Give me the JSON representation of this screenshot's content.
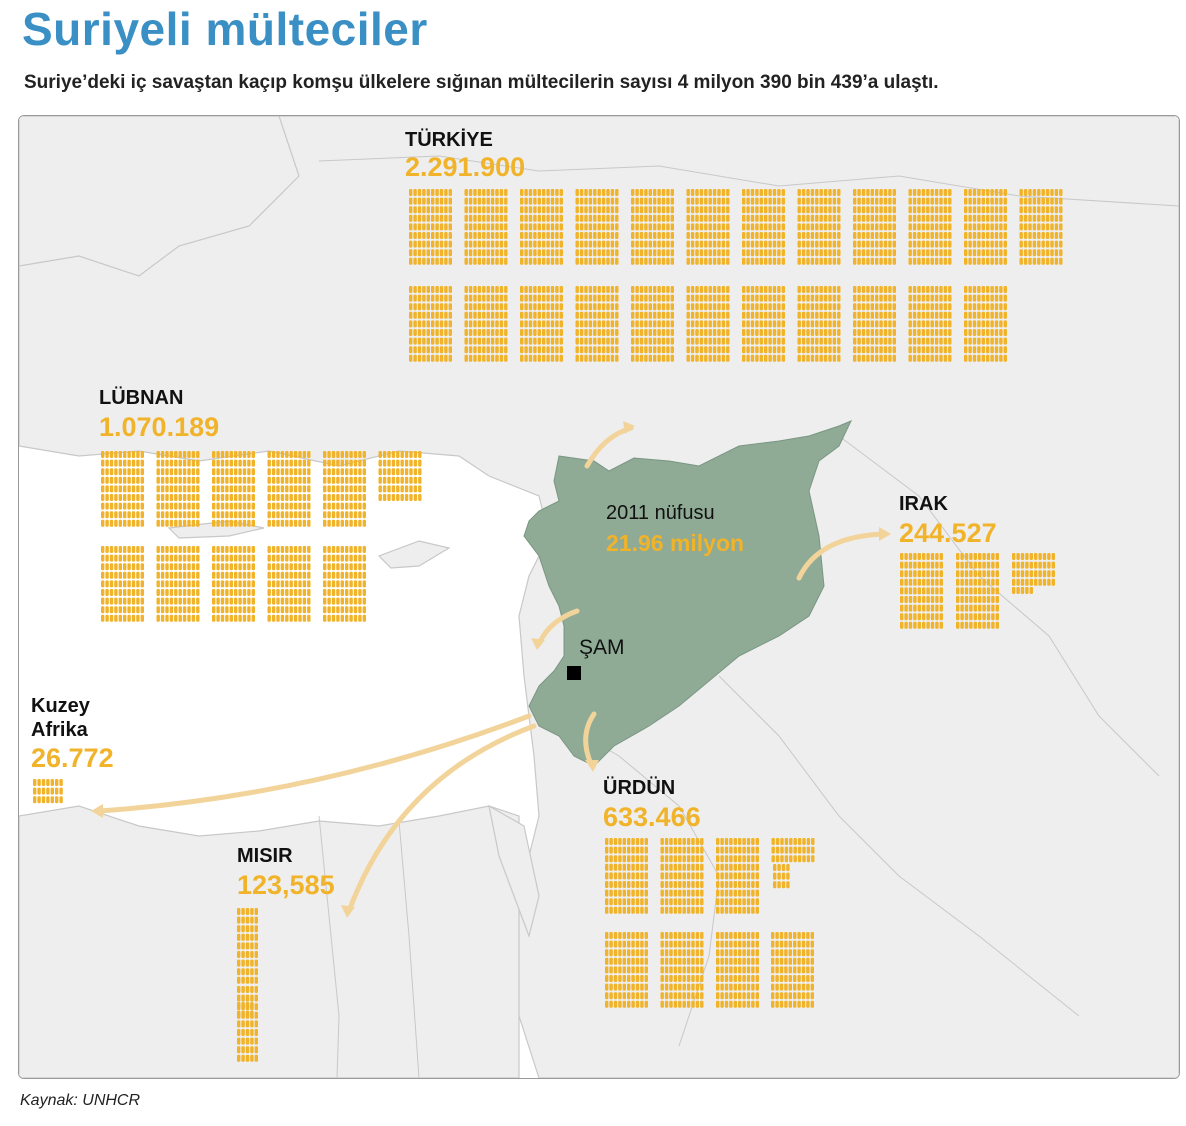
{
  "header": {
    "title": "Suriyeli mülteciler",
    "subtitle": "Suriye’deki iç savaştan kaçıp komşu ülkelere sığınan mültecilerin sayısı 4 milyon 390 bin 439’a ulaştı."
  },
  "syria": {
    "population_label": "2011 nüfusu",
    "population_value": "21.96 milyon",
    "capital": "ŞAM"
  },
  "countries": [
    {
      "id": "turkiye",
      "name": "TÜRKİYE",
      "value": "2.291.900"
    },
    {
      "id": "lubnan",
      "name": "LÜBNAN",
      "value": "1.070.189"
    },
    {
      "id": "irak",
      "name": "IRAK",
      "value": "244.527"
    },
    {
      "id": "kuzey-afrika",
      "name": "Kuzey\nAfrika",
      "value": "26.772"
    },
    {
      "id": "misir",
      "name": "MISIR",
      "value": "123,585"
    },
    {
      "id": "urdun",
      "name": "ÜRDÜN",
      "value": "633.466"
    }
  ],
  "source": "Kaynak: UNHCR",
  "colors": {
    "title": "#3a8fc4",
    "value": "#f0b32a",
    "icon": "#f0b32a",
    "syria": "#8fab96",
    "land": "#eeeeee",
    "border": "#c8c8c8",
    "arrow": "#f2d49a"
  }
}
